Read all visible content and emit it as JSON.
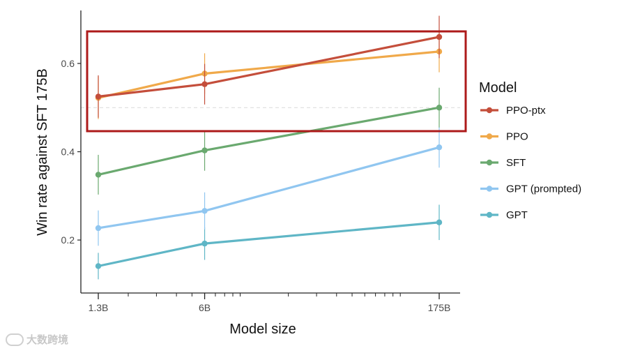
{
  "chart_data": {
    "type": "line",
    "x_scale": "log",
    "categories": [
      "1.3B",
      "6B",
      "175B"
    ],
    "x": [
      1.3,
      6,
      175
    ],
    "ylim": [
      0.08,
      0.72
    ],
    "yticks": [
      0.2,
      0.4,
      0.6
    ],
    "ytick_labels": [
      "0.2",
      "0.4",
      "0.6"
    ],
    "xlabel": "Model size",
    "ylabel": "Win rate against SFT 175B",
    "reference_line": 0.5,
    "legend_title": "Model",
    "highlight_box_series": [
      "PPO-ptx",
      "PPO"
    ],
    "series": [
      {
        "name": "PPO-ptx",
        "color": "#c44e3b",
        "values": [
          0.525,
          0.553,
          0.66
        ],
        "err": [
          0.048,
          0.046,
          0.048
        ]
      },
      {
        "name": "PPO",
        "color": "#f0a94a",
        "values": [
          0.522,
          0.577,
          0.627
        ],
        "err": [
          0.048,
          0.046,
          0.047
        ]
      },
      {
        "name": "SFT",
        "color": "#6aa96f",
        "values": [
          0.348,
          0.403,
          0.5
        ],
        "err": [
          0.045,
          0.046,
          0.045
        ]
      },
      {
        "name": "GPT (prompted)",
        "color": "#90c6f0",
        "values": [
          0.227,
          0.266,
          0.41
        ],
        "err": [
          0.04,
          0.042,
          0.046
        ]
      },
      {
        "name": "GPT",
        "color": "#5fb6c6",
        "values": [
          0.141,
          0.192,
          0.24
        ],
        "err": [
          0.03,
          0.037,
          0.04
        ]
      }
    ]
  },
  "watermark": {
    "text": "大数跨境"
  }
}
